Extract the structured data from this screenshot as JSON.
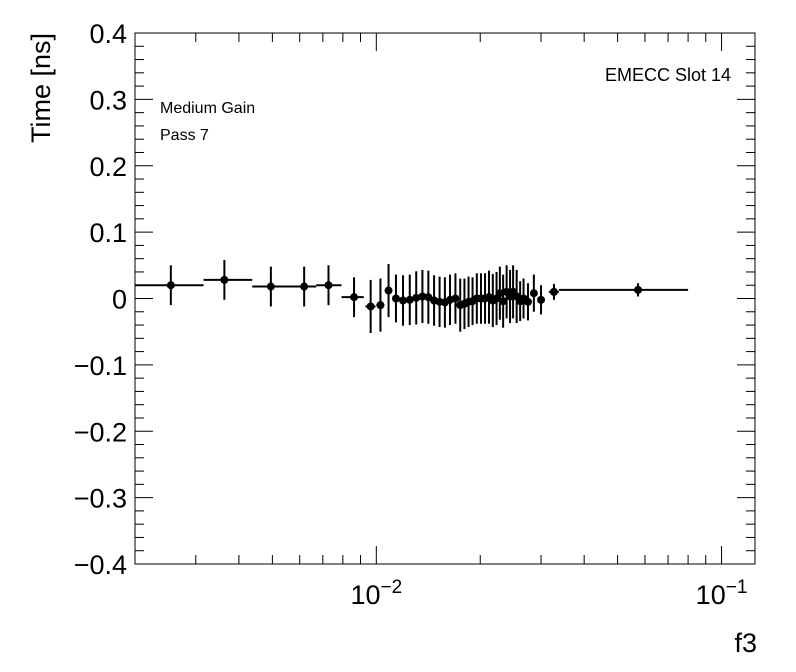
{
  "chart_data": {
    "type": "scatter",
    "xlabel": "f3",
    "ylabel": "Time [ns]",
    "x_scale": "log",
    "xlim": [
      0.002,
      0.125
    ],
    "ylim": [
      -0.4,
      0.4
    ],
    "y_ticks": [
      {
        "value": -0.4,
        "label": "−0.4"
      },
      {
        "value": -0.3,
        "label": "−0.3"
      },
      {
        "value": -0.2,
        "label": "−0.2"
      },
      {
        "value": -0.1,
        "label": "−0.1"
      },
      {
        "value": 0,
        "label": "0"
      },
      {
        "value": 0.1,
        "label": "0.1"
      },
      {
        "value": 0.2,
        "label": "0.2"
      },
      {
        "value": 0.3,
        "label": "0.3"
      },
      {
        "value": 0.4,
        "label": "0.4"
      }
    ],
    "x_major_ticks": [
      {
        "value": 0.01,
        "base": "10",
        "exp": "−2"
      },
      {
        "value": 0.1,
        "base": "10",
        "exp": "−1"
      }
    ],
    "annotations": {
      "top_right": "EMECC Slot 14",
      "line1": "Medium Gain",
      "line2": "Pass 7"
    },
    "points": [
      {
        "x": 0.00254,
        "y": 0.02,
        "err": 0.03,
        "xlo": 0.002,
        "xhi": 0.00316
      },
      {
        "x": 0.00363,
        "y": 0.028,
        "err": 0.03,
        "xlo": 0.00316,
        "xhi": 0.00437
      },
      {
        "x": 0.00495,
        "y": 0.018,
        "err": 0.03,
        "xlo": 0.00437,
        "xhi": 0.00568
      },
      {
        "x": 0.00618,
        "y": 0.018,
        "err": 0.03,
        "xlo": 0.00568,
        "xhi": 0.0067
      },
      {
        "x": 0.00727,
        "y": 0.02,
        "err": 0.03,
        "xlo": 0.0067,
        "xhi": 0.00793
      },
      {
        "x": 0.00862,
        "y": 0.002,
        "err": 0.03,
        "xlo": 0.00793,
        "xhi": 0.0092
      },
      {
        "x": 0.00963,
        "y": -0.012,
        "err": 0.04,
        "xlo": 0.0093,
        "xhi": 0.00995
      },
      {
        "x": 0.01028,
        "y": -0.01,
        "err": 0.04,
        "xlo": 0.01,
        "xhi": 0.01055
      },
      {
        "x": 0.01085,
        "y": 0.012,
        "err": 0.04,
        "xlo": 0.0106,
        "xhi": 0.0111
      },
      {
        "x": 0.0114,
        "y": 0.0,
        "err": 0.036,
        "xlo": 0.01115,
        "xhi": 0.01165
      },
      {
        "x": 0.01195,
        "y": -0.003,
        "err": 0.038,
        "xlo": 0.0117,
        "xhi": 0.0122
      },
      {
        "x": 0.0125,
        "y": -0.002,
        "err": 0.038,
        "xlo": 0.01225,
        "xhi": 0.01275
      },
      {
        "x": 0.01305,
        "y": 0.001,
        "err": 0.04,
        "xlo": 0.0128,
        "xhi": 0.0133
      },
      {
        "x": 0.0136,
        "y": 0.003,
        "err": 0.04,
        "xlo": 0.01335,
        "xhi": 0.01385
      },
      {
        "x": 0.01415,
        "y": 0.002,
        "err": 0.04,
        "xlo": 0.0139,
        "xhi": 0.0144
      },
      {
        "x": 0.0147,
        "y": -0.003,
        "err": 0.038,
        "xlo": 0.01445,
        "xhi": 0.01495
      },
      {
        "x": 0.01525,
        "y": -0.005,
        "err": 0.038,
        "xlo": 0.015,
        "xhi": 0.0155
      },
      {
        "x": 0.0158,
        "y": -0.006,
        "err": 0.038,
        "xlo": 0.01555,
        "xhi": 0.01605
      },
      {
        "x": 0.01635,
        "y": -0.002,
        "err": 0.038,
        "xlo": 0.0161,
        "xhi": 0.0166
      },
      {
        "x": 0.01695,
        "y": 0.0,
        "err": 0.038,
        "xlo": 0.01665,
        "xhi": 0.0172
      },
      {
        "x": 0.0175,
        "y": -0.01,
        "err": 0.04,
        "xlo": 0.01725,
        "xhi": 0.01775
      },
      {
        "x": 0.018,
        "y": -0.008,
        "err": 0.038,
        "xlo": 0.0178,
        "xhi": 0.0182
      },
      {
        "x": 0.0185,
        "y": -0.005,
        "err": 0.038,
        "xlo": 0.0183,
        "xhi": 0.0187
      },
      {
        "x": 0.019,
        "y": -0.004,
        "err": 0.036,
        "xlo": 0.0188,
        "xhi": 0.0192
      },
      {
        "x": 0.01955,
        "y": 0.0,
        "err": 0.038,
        "xlo": 0.01935,
        "xhi": 0.01975
      },
      {
        "x": 0.0201,
        "y": 0.0,
        "err": 0.038,
        "xlo": 0.0199,
        "xhi": 0.0203
      },
      {
        "x": 0.02065,
        "y": 0.0,
        "err": 0.038,
        "xlo": 0.02045,
        "xhi": 0.02085
      },
      {
        "x": 0.0212,
        "y": 0.002,
        "err": 0.04,
        "xlo": 0.021,
        "xhi": 0.0214
      },
      {
        "x": 0.02175,
        "y": -0.003,
        "err": 0.04,
        "xlo": 0.02155,
        "xhi": 0.02195
      },
      {
        "x": 0.0223,
        "y": 0.0,
        "err": 0.04,
        "xlo": 0.0221,
        "xhi": 0.0225
      },
      {
        "x": 0.0228,
        "y": 0.008,
        "err": 0.04,
        "xlo": 0.0226,
        "xhi": 0.023
      },
      {
        "x": 0.0233,
        "y": -0.004,
        "err": 0.04,
        "xlo": 0.0231,
        "xhi": 0.0235
      },
      {
        "x": 0.02385,
        "y": 0.01,
        "err": 0.04,
        "xlo": 0.02365,
        "xhi": 0.02405
      },
      {
        "x": 0.0244,
        "y": 0.003,
        "err": 0.04,
        "xlo": 0.0242,
        "xhi": 0.0246
      },
      {
        "x": 0.0249,
        "y": 0.01,
        "err": 0.04,
        "xlo": 0.0247,
        "xhi": 0.0251
      },
      {
        "x": 0.0255,
        "y": 0.003,
        "err": 0.04,
        "xlo": 0.0253,
        "xhi": 0.0257
      },
      {
        "x": 0.0261,
        "y": -0.004,
        "err": 0.03,
        "xlo": 0.0259,
        "xhi": 0.0263
      },
      {
        "x": 0.0267,
        "y": 0.0,
        "err": 0.03,
        "xlo": 0.0265,
        "xhi": 0.0269
      },
      {
        "x": 0.0275,
        "y": -0.005,
        "err": 0.028,
        "xlo": 0.0272,
        "xhi": 0.0278
      },
      {
        "x": 0.0286,
        "y": 0.008,
        "err": 0.028,
        "xlo": 0.0282,
        "xhi": 0.029
      },
      {
        "x": 0.03,
        "y": -0.002,
        "err": 0.022,
        "xlo": 0.0295,
        "xhi": 0.0305
      },
      {
        "x": 0.0327,
        "y": 0.01,
        "err": 0.012,
        "xlo": 0.0316,
        "xhi": 0.0338
      },
      {
        "x": 0.0573,
        "y": 0.013,
        "err": 0.01,
        "xlo": 0.0338,
        "xhi": 0.08
      }
    ]
  }
}
